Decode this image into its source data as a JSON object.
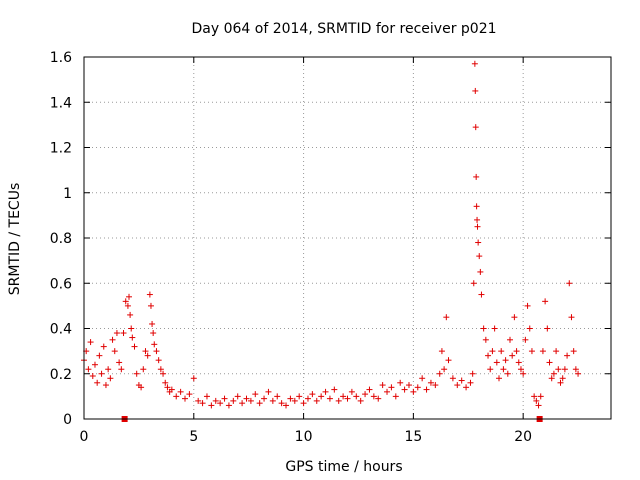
{
  "chart_data": {
    "type": "scatter",
    "title": "Day 064 of 2014, SRMTID for receiver p021",
    "xlabel": "GPS time / hours",
    "ylabel": "SRMTID / TECUs",
    "xlim": [
      0,
      24
    ],
    "ylim": [
      0,
      1.6
    ],
    "x_ticks": [
      0,
      5,
      10,
      15,
      20
    ],
    "x_tick_labels": [
      "0",
      "5",
      "10",
      "15",
      "20"
    ],
    "y_ticks": [
      0,
      0.2,
      0.4,
      0.6,
      0.8,
      1.0,
      1.2,
      1.4,
      1.6
    ],
    "y_tick_labels": [
      "0",
      "0.2",
      "0.4",
      "0.6",
      "0.8",
      "1",
      "1.2",
      "1.4",
      "1.6"
    ],
    "grid": true,
    "marker": "+",
    "color": "#e00000",
    "series": [
      {
        "name": "SRMTID",
        "x": [
          0.0,
          0.1,
          0.2,
          0.3,
          0.4,
          0.5,
          0.6,
          0.7,
          0.8,
          0.9,
          1.0,
          1.1,
          1.2,
          1.3,
          1.4,
          1.5,
          1.6,
          1.7,
          1.8,
          1.9,
          2.0,
          2.05,
          2.1,
          2.15,
          2.2,
          2.3,
          2.4,
          2.5,
          2.6,
          2.7,
          2.8,
          2.9,
          3.0,
          3.05,
          3.1,
          3.15,
          3.2,
          3.3,
          3.4,
          3.5,
          3.6,
          3.7,
          3.8,
          3.9,
          4.0,
          4.2,
          4.4,
          4.6,
          4.8,
          5.0,
          5.2,
          5.4,
          5.6,
          5.8,
          6.0,
          6.2,
          6.4,
          6.6,
          6.8,
          7.0,
          7.2,
          7.4,
          7.6,
          7.8,
          8.0,
          8.2,
          8.4,
          8.6,
          8.8,
          9.0,
          9.2,
          9.4,
          9.6,
          9.8,
          10.0,
          10.2,
          10.4,
          10.6,
          10.8,
          11.0,
          11.2,
          11.4,
          11.6,
          11.8,
          12.0,
          12.2,
          12.4,
          12.6,
          12.8,
          13.0,
          13.2,
          13.4,
          13.6,
          13.8,
          14.0,
          14.2,
          14.4,
          14.6,
          14.8,
          15.0,
          15.2,
          15.4,
          15.6,
          15.8,
          16.0,
          16.2,
          16.3,
          16.4,
          16.5,
          16.6,
          16.8,
          17.0,
          17.2,
          17.4,
          17.6,
          17.7,
          17.75,
          17.8,
          17.82,
          17.84,
          17.86,
          17.88,
          17.9,
          17.92,
          17.95,
          18.0,
          18.05,
          18.1,
          18.2,
          18.3,
          18.4,
          18.5,
          18.6,
          18.7,
          18.8,
          18.9,
          19.0,
          19.1,
          19.2,
          19.3,
          19.4,
          19.5,
          19.6,
          19.7,
          19.8,
          19.9,
          20.0,
          20.1,
          20.2,
          20.3,
          20.4,
          20.5,
          20.6,
          20.7,
          20.8,
          20.9,
          21.0,
          21.1,
          21.2,
          21.3,
          21.4,
          21.5,
          21.6,
          21.7,
          21.8,
          21.9,
          22.0,
          22.1,
          22.2,
          22.3,
          22.4,
          22.5,
          1.85,
          20.75
        ],
        "values": [
          0.26,
          0.3,
          0.22,
          0.34,
          0.19,
          0.24,
          0.16,
          0.28,
          0.2,
          0.32,
          0.15,
          0.22,
          0.18,
          0.35,
          0.3,
          0.38,
          0.25,
          0.22,
          0.38,
          0.52,
          0.5,
          0.54,
          0.46,
          0.4,
          0.36,
          0.32,
          0.2,
          0.15,
          0.14,
          0.22,
          0.3,
          0.28,
          0.55,
          0.5,
          0.42,
          0.38,
          0.33,
          0.3,
          0.26,
          0.22,
          0.2,
          0.16,
          0.14,
          0.12,
          0.13,
          0.1,
          0.12,
          0.09,
          0.11,
          0.18,
          0.08,
          0.07,
          0.1,
          0.06,
          0.08,
          0.07,
          0.09,
          0.06,
          0.08,
          0.1,
          0.07,
          0.09,
          0.08,
          0.11,
          0.07,
          0.09,
          0.12,
          0.08,
          0.1,
          0.07,
          0.06,
          0.09,
          0.08,
          0.1,
          0.07,
          0.09,
          0.11,
          0.08,
          0.1,
          0.12,
          0.09,
          0.13,
          0.08,
          0.1,
          0.09,
          0.12,
          0.1,
          0.08,
          0.11,
          0.13,
          0.1,
          0.09,
          0.15,
          0.12,
          0.14,
          0.1,
          0.16,
          0.13,
          0.15,
          0.12,
          0.14,
          0.18,
          0.13,
          0.16,
          0.15,
          0.2,
          0.3,
          0.22,
          0.45,
          0.26,
          0.18,
          0.15,
          0.17,
          0.14,
          0.16,
          0.2,
          0.6,
          1.57,
          1.45,
          1.29,
          1.07,
          0.94,
          0.88,
          0.85,
          0.78,
          0.72,
          0.65,
          0.55,
          0.4,
          0.35,
          0.28,
          0.22,
          0.3,
          0.4,
          0.25,
          0.18,
          0.3,
          0.22,
          0.26,
          0.2,
          0.35,
          0.28,
          0.45,
          0.3,
          0.25,
          0.22,
          0.2,
          0.35,
          0.5,
          0.4,
          0.3,
          0.1,
          0.08,
          0.06,
          0.1,
          0.3,
          0.52,
          0.4,
          0.25,
          0.18,
          0.2,
          0.3,
          0.22,
          0.16,
          0.18,
          0.22,
          0.28,
          0.6,
          0.45,
          0.3,
          0.22,
          0.2,
          0.0,
          0.0
        ]
      }
    ],
    "square_markers_x": [
      1.85,
      20.75
    ],
    "square_markers_y": [
      0.0,
      0.0
    ]
  }
}
